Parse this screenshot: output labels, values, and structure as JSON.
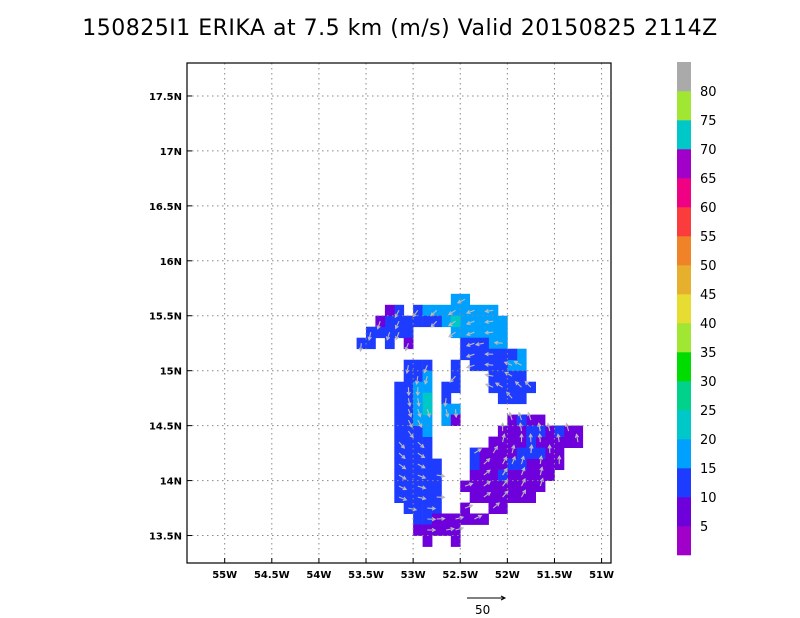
{
  "chart_data": {
    "type": "heatmap",
    "title": "150825I1 ERIKA at 7.5 km (m/s) Valid 20150825 2114Z",
    "xlabel": "",
    "ylabel": "",
    "xlim": [
      -55.4,
      -50.9
    ],
    "ylim": [
      13.25,
      17.8
    ],
    "grid": true,
    "x_ticks": [
      {
        "value": -55.0,
        "label": "55W"
      },
      {
        "value": -54.5,
        "label": "54.5W"
      },
      {
        "value": -54.0,
        "label": "54W"
      },
      {
        "value": -53.5,
        "label": "53.5W"
      },
      {
        "value": -53.0,
        "label": "53W"
      },
      {
        "value": -52.5,
        "label": "52.5W"
      },
      {
        "value": -52.0,
        "label": "52W"
      },
      {
        "value": -51.5,
        "label": "51.5W"
      },
      {
        "value": -51.0,
        "label": "51W"
      }
    ],
    "y_ticks": [
      {
        "value": 13.5,
        "label": "13.5N"
      },
      {
        "value": 14.0,
        "label": "14N"
      },
      {
        "value": 14.5,
        "label": "14.5N"
      },
      {
        "value": 15.0,
        "label": "15N"
      },
      {
        "value": 15.5,
        "label": "15.5N"
      },
      {
        "value": 16.0,
        "label": "16N"
      },
      {
        "value": 16.5,
        "label": "16.5N"
      },
      {
        "value": 17.0,
        "label": "17N"
      },
      {
        "value": 17.5,
        "label": "17.5N"
      }
    ],
    "colorbar": {
      "bins": [
        {
          "min": 0,
          "max": 5,
          "color": "#a000c8"
        },
        {
          "min": 5,
          "max": 10,
          "color": "#6e00dc"
        },
        {
          "min": 10,
          "max": 15,
          "color": "#1e3cff"
        },
        {
          "min": 15,
          "max": 20,
          "color": "#00a0ff"
        },
        {
          "min": 20,
          "max": 25,
          "color": "#00c8c8"
        },
        {
          "min": 25,
          "max": 30,
          "color": "#00d28c"
        },
        {
          "min": 30,
          "max": 35,
          "color": "#00dc00"
        },
        {
          "min": 35,
          "max": 40,
          "color": "#a0e632"
        },
        {
          "min": 40,
          "max": 45,
          "color": "#e6dc32"
        },
        {
          "min": 45,
          "max": 50,
          "color": "#e6af2d"
        },
        {
          "min": 50,
          "max": 55,
          "color": "#f08228"
        },
        {
          "min": 55,
          "max": 60,
          "color": "#fa3c3c"
        },
        {
          "min": 60,
          "max": 65,
          "color": "#f00082"
        },
        {
          "min": 65,
          "max": 70,
          "color": "#a000c8"
        },
        {
          "min": 70,
          "max": 75,
          "color": "#00c8c8"
        },
        {
          "min": 75,
          "max": 80,
          "color": "#a0e632"
        },
        {
          "min": 80,
          "max": 85,
          "color": "#aaaaaa"
        }
      ],
      "labels": [
        "5",
        "10",
        "15",
        "20",
        "25",
        "30",
        "35",
        "40",
        "45",
        "50",
        "55",
        "60",
        "65",
        "70",
        "75",
        "80"
      ]
    },
    "regions": [
      {
        "name": "northwest-arc",
        "bin": 2,
        "cells": [
          [
            -53.55,
            15.25
          ],
          [
            -53.45,
            15.25
          ],
          [
            -53.45,
            15.35
          ],
          [
            -53.35,
            15.35
          ],
          [
            -53.25,
            15.35
          ],
          [
            -53.25,
            15.45
          ],
          [
            -53.15,
            15.45
          ],
          [
            -53.05,
            15.45
          ],
          [
            -53.15,
            15.35
          ],
          [
            -53.05,
            15.35
          ],
          [
            -52.95,
            15.55
          ],
          [
            -52.95,
            15.45
          ],
          [
            -53.15,
            15.55
          ],
          [
            -53.25,
            15.25
          ]
        ]
      },
      {
        "name": "northwest-arc-purple",
        "bin": 1,
        "cells": [
          [
            -53.35,
            15.45
          ],
          [
            -53.25,
            15.55
          ],
          [
            -53.05,
            15.25
          ]
        ]
      },
      {
        "name": "north-band",
        "bin": 3,
        "cells": [
          [
            -52.85,
            15.55
          ],
          [
            -52.75,
            15.55
          ],
          [
            -52.65,
            15.55
          ],
          [
            -52.55,
            15.55
          ],
          [
            -52.45,
            15.55
          ],
          [
            -52.35,
            15.55
          ],
          [
            -52.25,
            15.55
          ],
          [
            -52.15,
            15.55
          ],
          [
            -52.55,
            15.65
          ],
          [
            -52.45,
            15.65
          ],
          [
            -52.65,
            15.45
          ],
          [
            -52.55,
            15.45
          ],
          [
            -52.45,
            15.45
          ],
          [
            -52.35,
            15.45
          ],
          [
            -52.25,
            15.45
          ],
          [
            -52.15,
            15.45
          ],
          [
            -52.05,
            15.45
          ],
          [
            -52.55,
            15.35
          ],
          [
            -52.45,
            15.35
          ],
          [
            -52.35,
            15.35
          ],
          [
            -52.25,
            15.35
          ],
          [
            -52.15,
            15.35
          ],
          [
            -52.05,
            15.35
          ],
          [
            -52.05,
            15.25
          ],
          [
            -52.15,
            15.25
          ],
          [
            -51.95,
            15.05
          ],
          [
            -51.85,
            15.15
          ],
          [
            -51.85,
            15.05
          ]
        ]
      },
      {
        "name": "north-band-cyan",
        "bin": 4,
        "cells": [
          [
            -52.55,
            15.45
          ]
        ]
      },
      {
        "name": "north-band-blue",
        "bin": 2,
        "cells": [
          [
            -52.75,
            15.45
          ],
          [
            -52.85,
            15.45
          ],
          [
            -52.35,
            15.25
          ],
          [
            -52.45,
            15.25
          ],
          [
            -52.25,
            15.25
          ],
          [
            -52.45,
            15.15
          ],
          [
            -52.35,
            15.15
          ],
          [
            -52.25,
            15.15
          ],
          [
            -52.15,
            15.15
          ],
          [
            -52.05,
            15.15
          ],
          [
            -52.35,
            15.05
          ],
          [
            -52.25,
            15.05
          ],
          [
            -52.15,
            15.05
          ],
          [
            -52.05,
            15.05
          ],
          [
            -52.15,
            14.95
          ],
          [
            -52.05,
            14.95
          ],
          [
            -51.95,
            14.95
          ],
          [
            -51.95,
            15.15
          ],
          [
            -52.05,
            14.85
          ],
          [
            -51.95,
            14.85
          ],
          [
            -51.85,
            14.85
          ],
          [
            -52.05,
            14.75
          ],
          [
            -51.95,
            14.75
          ],
          [
            -51.85,
            14.75
          ],
          [
            -51.75,
            14.85
          ],
          [
            -51.85,
            14.95
          ],
          [
            -52.15,
            14.85
          ],
          [
            -52.55,
            15.05
          ],
          [
            -52.55,
            14.95
          ],
          [
            -52.65,
            14.85
          ],
          [
            -52.65,
            14.75
          ],
          [
            -52.55,
            14.85
          ]
        ]
      },
      {
        "name": "west-arc",
        "bin": 2,
        "cells": [
          [
            -53.05,
            15.05
          ],
          [
            -52.95,
            15.05
          ],
          [
            -52.85,
            15.05
          ],
          [
            -53.05,
            14.95
          ],
          [
            -52.95,
            14.95
          ],
          [
            -53.15,
            14.85
          ],
          [
            -53.05,
            14.85
          ],
          [
            -53.15,
            14.75
          ],
          [
            -53.05,
            14.75
          ],
          [
            -53.15,
            14.65
          ],
          [
            -53.05,
            14.65
          ],
          [
            -53.15,
            14.55
          ],
          [
            -53.05,
            14.55
          ],
          [
            -53.15,
            14.45
          ],
          [
            -53.05,
            14.45
          ],
          [
            -52.95,
            14.45
          ],
          [
            -53.15,
            14.35
          ],
          [
            -53.05,
            14.35
          ],
          [
            -52.95,
            14.35
          ],
          [
            -52.85,
            14.35
          ],
          [
            -53.15,
            14.25
          ],
          [
            -53.05,
            14.25
          ],
          [
            -52.95,
            14.25
          ],
          [
            -52.85,
            14.25
          ],
          [
            -53.15,
            14.15
          ],
          [
            -53.05,
            14.15
          ],
          [
            -52.95,
            14.15
          ],
          [
            -52.85,
            14.15
          ],
          [
            -53.15,
            14.05
          ],
          [
            -53.05,
            14.05
          ],
          [
            -52.95,
            14.05
          ],
          [
            -52.85,
            14.05
          ],
          [
            -53.15,
            13.95
          ],
          [
            -53.05,
            13.95
          ],
          [
            -52.95,
            13.95
          ],
          [
            -52.85,
            13.95
          ],
          [
            -53.15,
            13.85
          ],
          [
            -53.05,
            13.85
          ],
          [
            -52.95,
            13.85
          ],
          [
            -52.85,
            13.85
          ],
          [
            -53.05,
            13.75
          ],
          [
            -52.95,
            13.75
          ],
          [
            -52.85,
            13.75
          ],
          [
            -52.95,
            13.65
          ],
          [
            -52.85,
            13.65
          ],
          [
            -52.75,
            13.95
          ],
          [
            -52.75,
            13.85
          ],
          [
            -52.75,
            13.75
          ],
          [
            -52.75,
            14.05
          ],
          [
            -52.75,
            14.15
          ]
        ]
      },
      {
        "name": "west-arc-cyan",
        "bin": 3,
        "cells": [
          [
            -52.95,
            14.85
          ],
          [
            -52.85,
            14.85
          ],
          [
            -52.95,
            14.75
          ],
          [
            -52.85,
            14.75
          ],
          [
            -52.95,
            14.65
          ],
          [
            -52.85,
            14.65
          ],
          [
            -52.95,
            14.55
          ],
          [
            -52.85,
            14.55
          ],
          [
            -52.85,
            14.95
          ],
          [
            -52.85,
            14.45
          ],
          [
            -52.65,
            14.65
          ],
          [
            -52.65,
            14.55
          ],
          [
            -52.55,
            14.65
          ]
        ]
      },
      {
        "name": "west-arc-green",
        "bin": 4,
        "cells": [
          [
            -52.85,
            14.75
          ],
          [
            -52.85,
            14.65
          ]
        ]
      },
      {
        "name": "southern-purple",
        "bin": 1,
        "cells": [
          [
            -52.95,
            13.55
          ],
          [
            -52.85,
            13.55
          ],
          [
            -52.75,
            13.55
          ],
          [
            -52.65,
            13.55
          ],
          [
            -52.85,
            13.45
          ],
          [
            -52.75,
            13.65
          ],
          [
            -52.65,
            13.65
          ],
          [
            -52.55,
            13.65
          ],
          [
            -52.45,
            13.65
          ],
          [
            -52.35,
            13.65
          ],
          [
            -52.25,
            13.65
          ],
          [
            -52.55,
            13.55
          ],
          [
            -52.55,
            13.45
          ],
          [
            -52.15,
            13.75
          ],
          [
            -52.05,
            13.75
          ],
          [
            -52.45,
            13.75
          ],
          [
            -52.55,
            14.55
          ]
        ]
      },
      {
        "name": "southeast-core",
        "bin": 1,
        "cells": [
          [
            -51.95,
            14.55
          ],
          [
            -51.85,
            14.55
          ],
          [
            -51.75,
            14.55
          ],
          [
            -51.65,
            14.55
          ],
          [
            -51.55,
            14.45
          ],
          [
            -51.45,
            14.45
          ],
          [
            -51.35,
            14.45
          ],
          [
            -51.25,
            14.45
          ],
          [
            -52.05,
            14.45
          ],
          [
            -51.95,
            14.45
          ],
          [
            -51.85,
            14.45
          ],
          [
            -51.75,
            14.45
          ],
          [
            -51.65,
            14.45
          ],
          [
            -52.15,
            14.35
          ],
          [
            -52.05,
            14.35
          ],
          [
            -51.95,
            14.35
          ],
          [
            -51.85,
            14.35
          ],
          [
            -51.75,
            14.35
          ],
          [
            -51.65,
            14.35
          ],
          [
            -51.55,
            14.35
          ],
          [
            -51.45,
            14.35
          ],
          [
            -51.35,
            14.35
          ],
          [
            -51.25,
            14.35
          ],
          [
            -52.25,
            14.25
          ],
          [
            -52.15,
            14.25
          ],
          [
            -52.05,
            14.25
          ],
          [
            -51.95,
            14.25
          ],
          [
            -51.85,
            14.25
          ],
          [
            -51.75,
            14.25
          ],
          [
            -51.65,
            14.25
          ],
          [
            -51.55,
            14.25
          ],
          [
            -51.45,
            14.25
          ],
          [
            -52.25,
            14.15
          ],
          [
            -52.15,
            14.15
          ],
          [
            -52.05,
            14.15
          ],
          [
            -51.95,
            14.15
          ],
          [
            -51.85,
            14.15
          ],
          [
            -51.75,
            14.15
          ],
          [
            -51.65,
            14.15
          ],
          [
            -51.55,
            14.15
          ],
          [
            -51.45,
            14.15
          ],
          [
            -52.35,
            14.05
          ],
          [
            -52.25,
            14.05
          ],
          [
            -52.15,
            14.05
          ],
          [
            -52.05,
            14.05
          ],
          [
            -51.95,
            14.05
          ],
          [
            -51.85,
            14.05
          ],
          [
            -51.75,
            14.05
          ],
          [
            -51.65,
            14.05
          ],
          [
            -51.55,
            14.05
          ],
          [
            -52.45,
            13.95
          ],
          [
            -52.35,
            13.95
          ],
          [
            -52.25,
            13.95
          ],
          [
            -52.15,
            13.95
          ],
          [
            -52.05,
            13.95
          ],
          [
            -51.95,
            13.95
          ],
          [
            -51.85,
            13.95
          ],
          [
            -51.75,
            13.95
          ],
          [
            -51.65,
            13.95
          ],
          [
            -52.35,
            13.85
          ],
          [
            -52.25,
            13.85
          ],
          [
            -52.15,
            13.85
          ],
          [
            -52.05,
            13.85
          ],
          [
            -51.95,
            13.85
          ],
          [
            -51.85,
            13.85
          ],
          [
            -51.75,
            13.85
          ]
        ]
      },
      {
        "name": "southeast-blue",
        "bin": 2,
        "cells": [
          [
            -51.85,
            14.55
          ],
          [
            -51.75,
            14.45
          ],
          [
            -51.65,
            14.45
          ],
          [
            -51.45,
            14.45
          ],
          [
            -51.75,
            14.35
          ],
          [
            -51.85,
            14.25
          ],
          [
            -51.75,
            14.25
          ],
          [
            -51.65,
            14.25
          ],
          [
            -51.95,
            14.15
          ],
          [
            -51.85,
            14.15
          ],
          [
            -52.05,
            14.05
          ],
          [
            -52.35,
            14.15
          ],
          [
            -52.35,
            14.25
          ]
        ]
      }
    ],
    "reference_vector": {
      "value": 50,
      "label": "50"
    }
  }
}
